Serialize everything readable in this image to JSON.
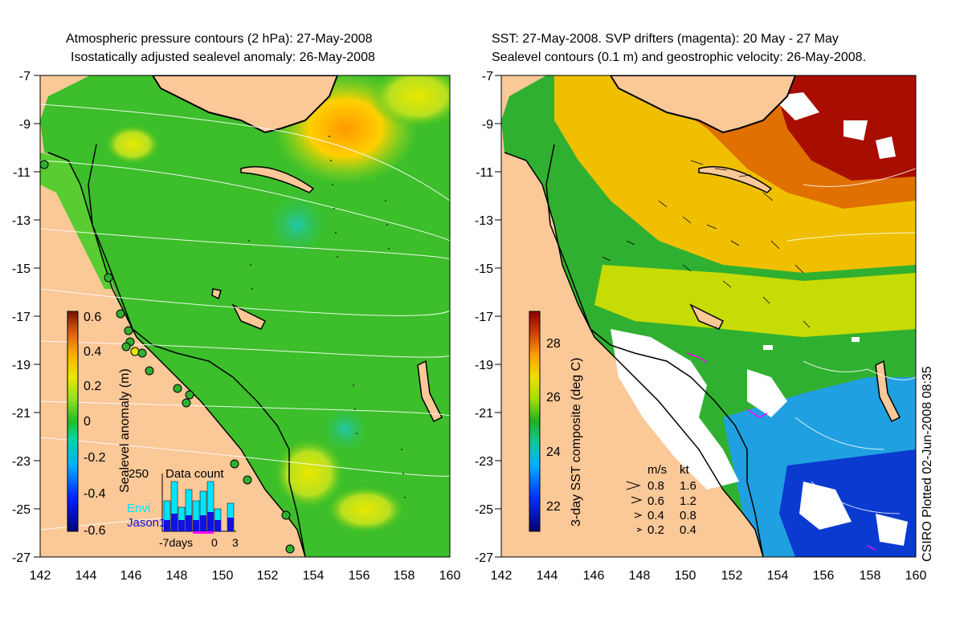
{
  "left_panel": {
    "title_line1": "Atmospheric pressure contours (2 hPa): 27-May-2008",
    "title_line2": "Isostatically adjusted sealevel anomaly: 26-May-2008",
    "y_ticks": [
      "-7",
      "-9",
      "-11",
      "-13",
      "-15",
      "-17",
      "-19",
      "-21",
      "-23",
      "-25",
      "-27"
    ],
    "x_ticks": [
      "142",
      "144",
      "146",
      "148",
      "150",
      "152",
      "154",
      "156",
      "158",
      "160"
    ],
    "colorbar": {
      "label": "Sealevel anomaly (m)",
      "ticks": [
        "0.6",
        "0.4",
        "0.2",
        "0",
        "-0.2",
        "-0.4",
        "-0.6"
      ],
      "range": [
        -0.6,
        0.6
      ]
    },
    "inset": {
      "title": "Data count",
      "y_label": "250",
      "legend": [
        "Envi",
        "Jason1"
      ],
      "x_labels": [
        "-7days",
        "0",
        "3"
      ],
      "envi_color": "#00e5ff",
      "jason_color": "#1010e0"
    }
  },
  "right_panel": {
    "title_line1": "SST: 27-May-2008. SVP drifters (magenta): 20 May - 27 May",
    "title_line2": "Sealevel contours (0.1 m) and geostrophic velocity: 26-May-2008.",
    "y_ticks": [
      "-7",
      "-9",
      "-11",
      "-13",
      "-15",
      "-17",
      "-19",
      "-21",
      "-23",
      "-25",
      "-27"
    ],
    "x_ticks": [
      "142",
      "144",
      "146",
      "148",
      "150",
      "152",
      "154",
      "156",
      "158",
      "160"
    ],
    "colorbar": {
      "label": "3-day SST composite (deg C)",
      "ticks": [
        "28",
        "26",
        "24",
        "22"
      ],
      "range": [
        21,
        29
      ]
    },
    "velocity_legend": {
      "header": [
        "m/s",
        "kt"
      ],
      "rows": [
        [
          "0.8",
          "1.6"
        ],
        [
          "0.6",
          "1.2"
        ],
        [
          "0.4",
          "0.8"
        ],
        [
          "0.2",
          "0.4"
        ]
      ]
    }
  },
  "stamp": "CSIRO Plotted 02-Jun-2008 08:35",
  "colors": {
    "land": "#fbc898",
    "coast": "#000000",
    "contour": "#ffffff"
  }
}
